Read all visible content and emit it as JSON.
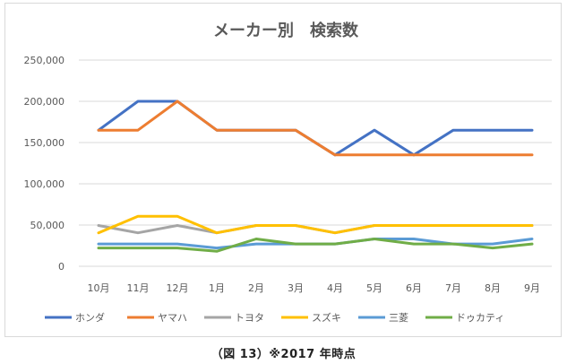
{
  "chart_data": {
    "type": "line",
    "title": "メーカー別　検索数",
    "categories": [
      "10月",
      "11月",
      "12月",
      "1月",
      "2月",
      "3月",
      "4月",
      "5月",
      "6月",
      "7月",
      "8月",
      "9月"
    ],
    "ylim": [
      0,
      250000
    ],
    "yticks": [
      "0",
      "50,000",
      "100,000",
      "150,000",
      "200,000",
      "250,000"
    ],
    "ytick_values": [
      0,
      50000,
      100000,
      150000,
      200000,
      250000
    ],
    "grid": true,
    "legend_position": "bottom",
    "series": [
      {
        "name": "ホンダ",
        "color": "#4472C4",
        "values": [
          165000,
          200000,
          200000,
          165000,
          165000,
          165000,
          135000,
          165000,
          135000,
          165000,
          165000,
          165000
        ]
      },
      {
        "name": "ヤマハ",
        "color": "#ED7D31",
        "values": [
          165000,
          165000,
          200000,
          165000,
          165000,
          165000,
          135000,
          135000,
          135000,
          135000,
          135000,
          135000
        ]
      },
      {
        "name": "トヨタ",
        "color": "#A5A5A5",
        "values": [
          49500,
          40500,
          49500,
          40500,
          49500,
          49500,
          40500,
          49500,
          49500,
          49500,
          49500,
          49500
        ]
      },
      {
        "name": "スズキ",
        "color": "#FFC000",
        "values": [
          40500,
          60500,
          60500,
          40500,
          49500,
          49500,
          40500,
          49500,
          49500,
          49500,
          49500,
          49500
        ]
      },
      {
        "name": "三菱",
        "color": "#5B9BD5",
        "values": [
          27100,
          27100,
          27100,
          22200,
          27100,
          27100,
          27100,
          33100,
          33100,
          27100,
          27100,
          33100
        ]
      },
      {
        "name": "ドゥカティ",
        "color": "#70AD47",
        "values": [
          22200,
          22200,
          22200,
          18100,
          33100,
          27100,
          27100,
          33100,
          27100,
          27100,
          22200,
          27100
        ]
      }
    ]
  },
  "caption": "（図 13）※2017 年時点"
}
